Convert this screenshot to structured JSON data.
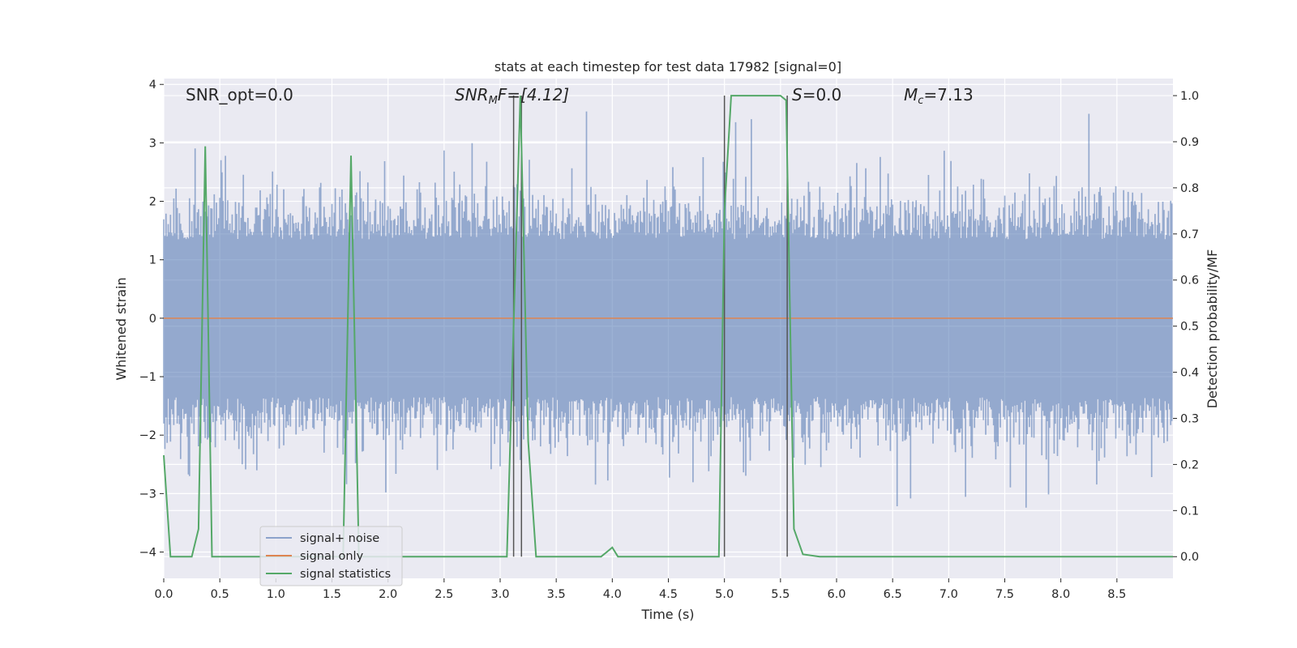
{
  "chart_data": {
    "type": "line",
    "title": "stats at each timestep for test data 17982 [signal=0]",
    "xlabel": "Time (s)",
    "ylabel_left": "Whitened strain",
    "ylabel_right": "Detection probability/MF",
    "xlim": [
      0.0,
      9.0
    ],
    "ylim_left": [
      -4.45,
      4.1
    ],
    "ylim_right": [
      -0.047,
      1.037
    ],
    "x_ticks": [
      "0.0",
      "0.5",
      "1.0",
      "1.5",
      "2.0",
      "2.5",
      "3.0",
      "3.5",
      "4.0",
      "4.5",
      "5.0",
      "5.5",
      "6.0",
      "6.5",
      "7.0",
      "7.5",
      "8.0",
      "8.5"
    ],
    "y_ticks_left": [
      "4",
      "3",
      "2",
      "1",
      "0",
      "−1",
      "−2",
      "−3",
      "−4"
    ],
    "y_ticks_right": [
      "1.0",
      "0.9",
      "0.8",
      "0.7",
      "0.6",
      "0.5",
      "0.4",
      "0.3",
      "0.2",
      "0.1",
      "0.0"
    ],
    "grid": true,
    "legend_position": "lower-left",
    "annotations": {
      "snr_opt": "SNR_opt=0.0",
      "snr_mf_base": "SNR",
      "snr_mf_sub": "M",
      "snr_mf_rest": "F=[4.12]",
      "s_var": "S",
      "s_rest": "=0.0",
      "mc_base": "M",
      "mc_sub": "c",
      "mc_rest": "=7.13"
    },
    "vertical_markers_x": [
      3.12,
      3.19,
      5.0,
      5.56
    ],
    "series": [
      {
        "name": "signal+ noise",
        "color": "#4c72b0",
        "description_range": [
          -3.9,
          3.75
        ],
        "envelope_typical": [
          -2.0,
          2.0
        ]
      },
      {
        "name": "signal only",
        "color": "#dd8452",
        "values_constant": 0.0
      },
      {
        "name": "signal statistics",
        "color": "#55a868",
        "axis": "right",
        "x": [
          0.0,
          0.06,
          0.25,
          0.31,
          0.37,
          0.43,
          1.6,
          1.67,
          1.74,
          3.06,
          3.18,
          3.25,
          3.32,
          3.4,
          3.9,
          3.95,
          4.0,
          4.05,
          4.95,
          5.0,
          5.06,
          5.5,
          5.55,
          5.62,
          5.7,
          5.85,
          5.9,
          9.0
        ],
        "y": [
          0.22,
          0.0,
          0.0,
          0.06,
          0.89,
          0.0,
          0.0,
          0.87,
          0.0,
          0.0,
          1.0,
          0.25,
          0.0,
          0.0,
          0.0,
          0.01,
          0.02,
          0.0,
          0.0,
          0.75,
          1.0,
          1.0,
          0.99,
          0.06,
          0.005,
          0.0,
          0.0,
          0.0
        ]
      }
    ]
  }
}
